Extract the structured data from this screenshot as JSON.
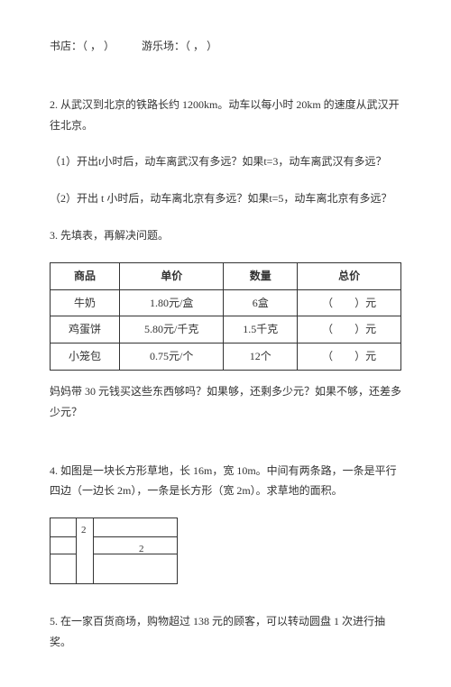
{
  "line1_a": "书店：（ ， ）",
  "line1_spacer": "　　　",
  "line1_b": "游乐场：（ ， ）",
  "q2_intro": "2. 从武汉到北京的铁路长约 1200km。动车以每小时 20km 的速度从武汉开往北京。",
  "q2_1": "（1）开出t小时后，动车离武汉有多远？如果t=3，动车离武汉有多远？",
  "q2_2": "（2）开出 t 小时后，动车离北京有多远？如果t=5，动车离北京有多远？",
  "q3_intro": "3. 先填表，再解决问题。",
  "table": {
    "headers": [
      "商品",
      "单价",
      "数量",
      "总价"
    ],
    "rows": [
      [
        "牛奶",
        "1.80元/盒",
        "6盒",
        "（　　）元"
      ],
      [
        "鸡蛋饼",
        "5.80元/千克",
        "1.5千克",
        "（　　）元"
      ],
      [
        "小笼包",
        "0.75元/个",
        "12个",
        "（　　）元"
      ]
    ]
  },
  "q3_after": "妈妈带 30 元钱买这些东西够吗？如果够，还剩多少元？如果不够，还差多少元？",
  "q4": "4. 如图是一块长方形草地，长 16m，宽 10m。中间有两条路，一条是平行四边（一边长 2m），一条是长方形（宽 2m）。求草地的面积。",
  "diag_num1": "2",
  "diag_num2": "2",
  "q5": "5. 在一家百货商场，购物超过 138 元的顾客，可以转动圆盘 1 次进行抽奖。"
}
